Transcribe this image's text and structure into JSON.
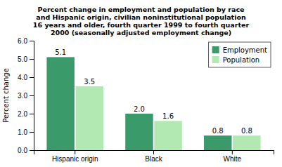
{
  "chart_data": {
    "type": "bar",
    "title": "Percent change in employment and population by race\nand Hispanic origin, civilian noninstitutional population\n16 years and older, fourth quarter 1999 to fourth quarter\n2000 (seasonally adjusted employment change)",
    "categories": [
      "Hispanic origin",
      "Black",
      "White"
    ],
    "series": [
      {
        "name": "Employment",
        "color": "#3a9a6a",
        "values": [
          5.1,
          2.0,
          0.8
        ],
        "value_labels": [
          "5.1",
          "2.0",
          "0.8"
        ]
      },
      {
        "name": "Population",
        "color": "#b2e8b2",
        "values": [
          3.5,
          1.6,
          0.8
        ],
        "value_labels": [
          "3.5",
          "1.6",
          "0.8"
        ]
      }
    ],
    "ylabel": "Percent change",
    "ylim": [
      0,
      6.0
    ],
    "yticks": [
      {
        "value": 0.0,
        "label": "0.0"
      },
      {
        "value": 1.0,
        "label": "1.0"
      },
      {
        "value": 2.0,
        "label": "2.0"
      },
      {
        "value": 3.0,
        "label": "3.0"
      },
      {
        "value": 4.0,
        "label": "4.0"
      },
      {
        "value": 5.0,
        "label": "5.0"
      },
      {
        "value": 6.0,
        "label": "6.0"
      }
    ],
    "legend": "upper right",
    "data_labels": true,
    "grid": false
  }
}
